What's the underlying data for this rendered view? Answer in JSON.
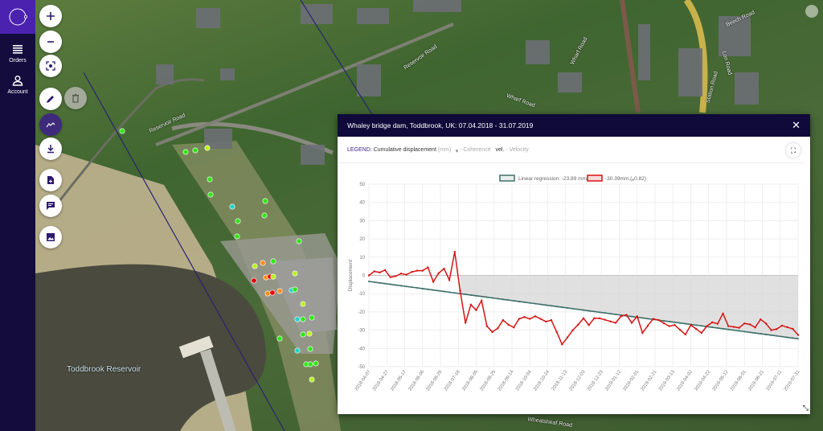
{
  "sidebar": {
    "items": [
      {
        "label": "Orders",
        "icon": "menu-icon"
      },
      {
        "label": "Account",
        "icon": "user-icon"
      }
    ]
  },
  "map": {
    "labels": [
      "Toddbrook Reservoir",
      "Reservoir Road",
      "Reservoir Road",
      "Wharf Road",
      "Wharf Road",
      "Wheatsheaf Road",
      "Beech Road",
      "Station Road",
      "Lon Road"
    ],
    "point_colors": {
      "green": "#33e51a",
      "yellow_green": "#b8f01e",
      "orange": "#ff8c1a",
      "red": "#e60000",
      "cyan": "#22d4c8"
    }
  },
  "tools": [
    "zoom-in",
    "zoom-out",
    "center",
    "draw",
    "delete",
    "trend",
    "download",
    "report",
    "comment",
    "image"
  ],
  "dialog": {
    "title": "Whaley bridge dam, Toddbrook, UK: 07.04.2018 - 31.07.2019",
    "legend": {
      "label": "LEGEND:",
      "measure": "Cumulative displacement",
      "unit": "(mm)",
      "coh_symbol": "ᵩ",
      "coh_text": "- Coherence",
      "vel_symbol": "vel.",
      "vel_text": "- Velocity"
    }
  },
  "chart_data": {
    "type": "line",
    "ylabel": "Displacement",
    "ylim": [
      -50,
      50
    ],
    "yticks": [
      50,
      40,
      30,
      20,
      10,
      0,
      -10,
      -20,
      -30,
      -40,
      -50
    ],
    "grid": true,
    "legend_placement": "top",
    "x_start": "2018-04-07",
    "x_end": "2019-07-31",
    "x_step_days": 6,
    "xticks": [
      "2018-04-07",
      "2018-04-27",
      "2018-05-17",
      "2018-06-06",
      "2018-06-26",
      "2018-07-16",
      "2018-08-05",
      "2018-08-25",
      "2018-09-14",
      "2018-10-04",
      "2018-10-24",
      "2018-11-13",
      "2018-12-03",
      "2018-12-23",
      "2019-01-12",
      "2019-02-01",
      "2019-02-21",
      "2019-03-13",
      "2019-04-02",
      "2019-04-22",
      "2019-05-12",
      "2019-06-01",
      "2019-06-21",
      "2019-07-11",
      "2019-07-31"
    ],
    "series": [
      {
        "name": "Linear regression: -23.89 mm/y",
        "color": "#3d7068",
        "rate_mm_per_year": -23.89,
        "start": -3.3
      },
      {
        "name": "-30.39mm,(ᵩ0.82)",
        "color": "#d71414",
        "values": [
          0,
          2.2,
          1.6,
          2.9,
          -1,
          -0.4,
          1,
          0.4,
          1.9,
          2.6,
          2.6,
          4.4,
          -3.5,
          1.2,
          3.7,
          -2.5,
          12.9,
          -8.4,
          -26,
          -16,
          -19,
          -13.8,
          -27.8,
          -31,
          -29,
          -24.5,
          -27,
          -28.5,
          -23.8,
          -22.8,
          -23.8,
          -22.4,
          -23.8,
          -25.3,
          -24.5,
          -31,
          -37.8,
          -34,
          -30,
          -27,
          -23.5,
          -27.2,
          -23.5,
          -23.5,
          -24.3,
          -25.2,
          -26,
          -22.4,
          -21.6,
          -26,
          -22.4,
          -31.5,
          -27.5,
          -23.8,
          -24.5,
          -26.2,
          -27.8,
          -27.2,
          -29.8,
          -32.4,
          -27.2,
          -29.3,
          -31.5,
          -27.8,
          -25.7,
          -26.5,
          -20.9,
          -27.8,
          -28.2,
          -28.7,
          -26.3,
          -26.8,
          -28.5,
          -24.1,
          -26.3,
          -30,
          -29.4,
          -27.5,
          -28.4,
          -29.3,
          -32.6
        ]
      }
    ]
  }
}
